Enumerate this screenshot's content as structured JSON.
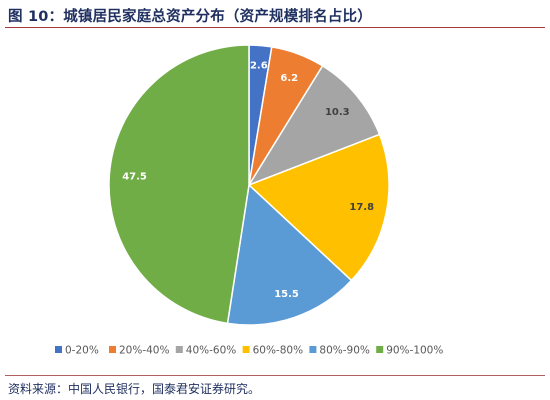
{
  "title": "图 10：城镇居民家庭总资产分布（资产规模排名占比）",
  "source": "资料来源：中国人民银行，国泰君安证券研究。",
  "chart_data": {
    "type": "pie",
    "title": "",
    "categories": [
      "0-20%",
      "20%-40%",
      "40%-60%",
      "60%-80%",
      "80%-90%",
      "90%-100%"
    ],
    "values": [
      2.6,
      6.2,
      10.3,
      17.8,
      15.5,
      47.5
    ],
    "colors": [
      "#4472c4",
      "#ed7d31",
      "#a5a5a5",
      "#ffc000",
      "#5b9bd5",
      "#70ad47"
    ],
    "data_labels": [
      "2.6",
      "6.2",
      "10.3",
      "17.8",
      "15.5",
      "47.5"
    ],
    "legend_position": "bottom"
  }
}
